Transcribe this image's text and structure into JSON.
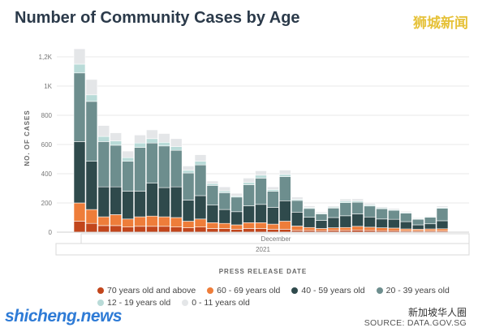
{
  "header": {
    "title": "Number of Community Cases by Age",
    "watermark": "狮城新闻"
  },
  "footer": {
    "site_watermark": "shicheng.news",
    "channel_watermark": "新加坡华人圈",
    "source": "SOURCE: DATA.GOV.SG"
  },
  "colors": {
    "70 years old and above": "#c2461c",
    "60 - 69 years old": "#ee7d3a",
    "40 - 59 years old": "#2f4a4c",
    "20 - 39 years old": "#6d8e8e",
    "12 - 19 years old": "#b9dbd8",
    "0 - 11 years old": "#e4e6e8"
  },
  "chart_data": {
    "type": "bar",
    "stacked": true,
    "title": "Number of Community Cases by Age",
    "xlabel": "PRESS RELEASE DATE",
    "ylabel": "NO. OF CASES",
    "ylim": [
      0,
      1300
    ],
    "yticks": [
      {
        "value": 0,
        "label": "0"
      },
      {
        "value": 200,
        "label": "200"
      },
      {
        "value": 400,
        "label": "400"
      },
      {
        "value": 600,
        "label": "600"
      },
      {
        "value": 800,
        "label": "800"
      },
      {
        "value": 1000,
        "label": "1K"
      },
      {
        "value": 1200,
        "label": "1,2K"
      }
    ],
    "x_group_labels": [
      "December",
      "2021"
    ],
    "grid": true,
    "legend_position": "bottom",
    "series": [
      {
        "name": "70 years old and above",
        "values": [
          75,
          60,
          45,
          45,
          35,
          40,
          40,
          40,
          35,
          30,
          35,
          25,
          25,
          20,
          25,
          25,
          20,
          20,
          12,
          12,
          10,
          12,
          12,
          15,
          12,
          10,
          10,
          8,
          8,
          8,
          8
        ]
      },
      {
        "name": "60 - 69 years old",
        "values": [
          125,
          95,
          60,
          75,
          55,
          65,
          70,
          65,
          65,
          45,
          55,
          40,
          35,
          30,
          40,
          40,
          35,
          55,
          30,
          20,
          15,
          18,
          20,
          25,
          22,
          20,
          18,
          14,
          12,
          14,
          15
        ]
      },
      {
        "name": "40 - 59 years old",
        "values": [
          420,
          330,
          205,
          190,
          190,
          175,
          225,
          200,
          210,
          145,
          160,
          120,
          95,
          90,
          115,
          125,
          115,
          140,
          95,
          70,
          55,
          70,
          80,
          85,
          70,
          60,
          60,
          50,
          30,
          35,
          55
        ]
      },
      {
        "name": "20 - 39 years old",
        "values": [
          470,
          410,
          310,
          285,
          205,
          300,
          275,
          285,
          250,
          185,
          210,
          135,
          115,
          100,
          145,
          180,
          110,
          165,
          80,
          60,
          45,
          65,
          90,
          80,
          75,
          70,
          62,
          58,
          38,
          45,
          85
        ]
      },
      {
        "name": "12 - 19 years old",
        "values": [
          60,
          45,
          35,
          30,
          25,
          30,
          30,
          25,
          25,
          18,
          25,
          12,
          12,
          8,
          15,
          20,
          12,
          15,
          8,
          6,
          6,
          6,
          10,
          8,
          8,
          6,
          5,
          5,
          4,
          4,
          6
        ]
      },
      {
        "name": "0 - 11 years old",
        "values": [
          105,
          105,
          75,
          55,
          45,
          55,
          60,
          60,
          55,
          30,
          45,
          18,
          28,
          18,
          30,
          30,
          18,
          30,
          15,
          12,
          8,
          8,
          15,
          15,
          12,
          8,
          8,
          8,
          6,
          6,
          10
        ]
      }
    ]
  }
}
